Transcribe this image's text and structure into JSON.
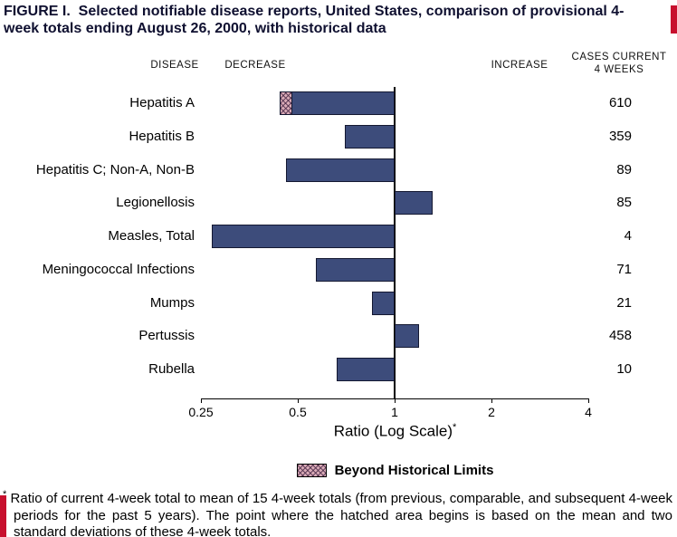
{
  "title": "FIGURE I.  Selected notifiable disease reports, United States, comparison of provisional 4-week totals ending August 26, 2000, with historical data",
  "header": {
    "col_disease": "DISEASE",
    "col_decrease": "DECREASE",
    "col_increase": "INCREASE",
    "col_cases_line1": "CASES CURRENT",
    "col_cases_line2": "4 WEEKS"
  },
  "chart_data": {
    "type": "bar",
    "orientation": "horizontal",
    "x_scale": "log2",
    "xlabel": "Ratio (Log Scale)",
    "xlabel_suffix": "*",
    "xlim": [
      0.25,
      4
    ],
    "baseline_ratio": 1,
    "x_ticks": [
      0.25,
      0.5,
      1,
      2,
      4
    ],
    "x_tick_labels": [
      "0.25",
      "0.5",
      "1",
      "2",
      "4"
    ],
    "bar_color": "#3d4c7b",
    "hatch_color": "#d9aab6",
    "rows": [
      {
        "disease": "Hepatitis A",
        "ratio": 0.44,
        "beyond_limit_to": 0.48,
        "cases": "610"
      },
      {
        "disease": "Hepatitis B",
        "ratio": 0.7,
        "cases": "359"
      },
      {
        "disease": "Hepatitis C; Non-A, Non-B",
        "ratio": 0.46,
        "cases": "89"
      },
      {
        "disease": "Legionellosis",
        "ratio": 1.31,
        "cases": "85"
      },
      {
        "disease": "Measles, Total",
        "ratio": 0.27,
        "cases": "4"
      },
      {
        "disease": "Meningococcal Infections",
        "ratio": 0.57,
        "cases": "71"
      },
      {
        "disease": "Mumps",
        "ratio": 0.85,
        "cases": "21"
      },
      {
        "disease": "Pertussis",
        "ratio": 1.19,
        "cases": "458"
      },
      {
        "disease": "Rubella",
        "ratio": 0.66,
        "cases": "10"
      }
    ],
    "legend": [
      {
        "label": "Beyond Historical Limits",
        "swatch": "hatched"
      }
    ]
  },
  "footnote": {
    "marker": "*",
    "text": "Ratio of current 4-week total to mean of 15 4-week totals (from previous, comparable, and subsequent 4-week periods for the past 5 years). The point where the hatched area begins is based on the mean and two standard deviations of these 4-week totals."
  },
  "accent_red": "#c8102e"
}
